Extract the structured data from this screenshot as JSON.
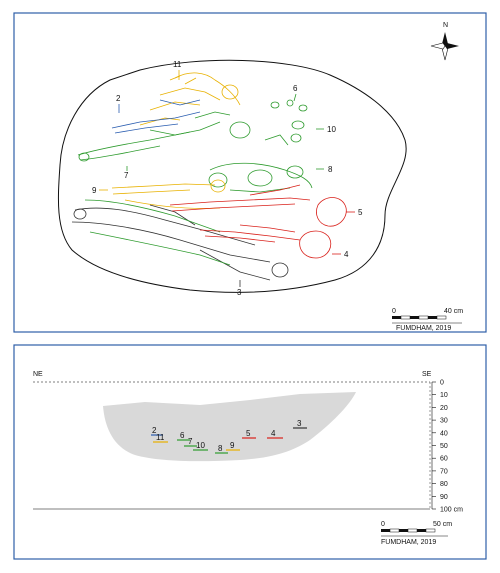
{
  "plan": {
    "north_label": "N",
    "individuals": [
      {
        "id": "11",
        "color": "#e8b100"
      },
      {
        "id": "2",
        "color": "#2a5db0"
      },
      {
        "id": "6",
        "color": "#2e9b2e"
      },
      {
        "id": "10",
        "color": "#2e9b2e"
      },
      {
        "id": "7",
        "color": "#2e9b2e"
      },
      {
        "id": "8",
        "color": "#2e9b2e"
      },
      {
        "id": "9",
        "color": "#e8b100"
      },
      {
        "id": "5",
        "color": "#d9211b"
      },
      {
        "id": "4",
        "color": "#d9211b"
      },
      {
        "id": "3",
        "color": "#333333"
      }
    ],
    "scale": {
      "start": "0",
      "end": "40 cm"
    },
    "credit": "FUMDHAM, 2019"
  },
  "section": {
    "left_label": "NE",
    "right_label": "SE",
    "depth_ticks": [
      "0",
      "10",
      "20",
      "30",
      "40",
      "50",
      "60",
      "70",
      "80",
      "90",
      "100 cm"
    ],
    "labels": [
      {
        "id": "2",
        "color": "#2a5db0"
      },
      {
        "id": "11",
        "color": "#e8b100"
      },
      {
        "id": "6",
        "color": "#2e9b2e"
      },
      {
        "id": "7",
        "color": "#2e9b2e"
      },
      {
        "id": "10",
        "color": "#2e9b2e"
      },
      {
        "id": "8",
        "color": "#2e9b2e"
      },
      {
        "id": "9",
        "color": "#e8b100"
      },
      {
        "id": "5",
        "color": "#d9211b"
      },
      {
        "id": "4",
        "color": "#d9211b"
      },
      {
        "id": "3",
        "color": "#333333"
      }
    ],
    "scale": {
      "start": "0",
      "end": "50 cm"
    },
    "credit": "FUMDHAM, 2019"
  }
}
